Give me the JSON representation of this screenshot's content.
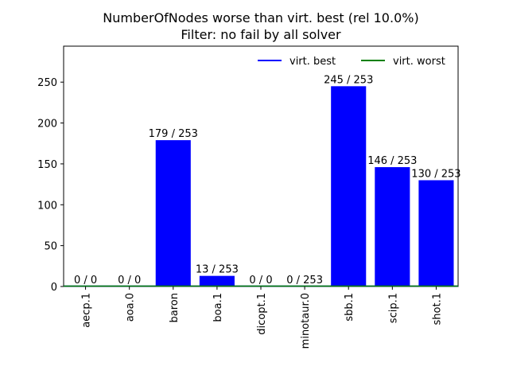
{
  "chart_data": {
    "type": "bar",
    "title": "NumberOfNodes worse than virt. best (rel 10.0%)",
    "subtitle": "Filter: no fail by all solver",
    "xlabel": "",
    "ylabel": "",
    "categories": [
      "aecp.1",
      "aoa.0",
      "baron",
      "boa.1",
      "dicopt.1",
      "minotaur.0",
      "sbb.1",
      "scip.1",
      "shot.1"
    ],
    "values": [
      0,
      0,
      179,
      13,
      0,
      0,
      245,
      146,
      130
    ],
    "bar_labels": [
      "0 / 0",
      "0 / 0",
      "179 / 253",
      "13 / 253",
      "0 / 0",
      "0 / 253",
      "245 / 253",
      "146 / 253",
      "130 / 253"
    ],
    "ylim": [
      0,
      294
    ],
    "yticks": [
      0,
      50,
      100,
      150,
      200,
      250
    ],
    "grid": false,
    "legend_position": "top-right",
    "legend": [
      {
        "name": "virt. best",
        "color": "#0000ff"
      },
      {
        "name": "virt. worst",
        "color": "#008000"
      }
    ],
    "bar_color": "#0000ff",
    "reference_lines": [
      {
        "name": "virt. best",
        "value": 0,
        "color": "#0000ff"
      },
      {
        "name": "virt. worst",
        "value": 0,
        "color": "#008000"
      }
    ]
  }
}
